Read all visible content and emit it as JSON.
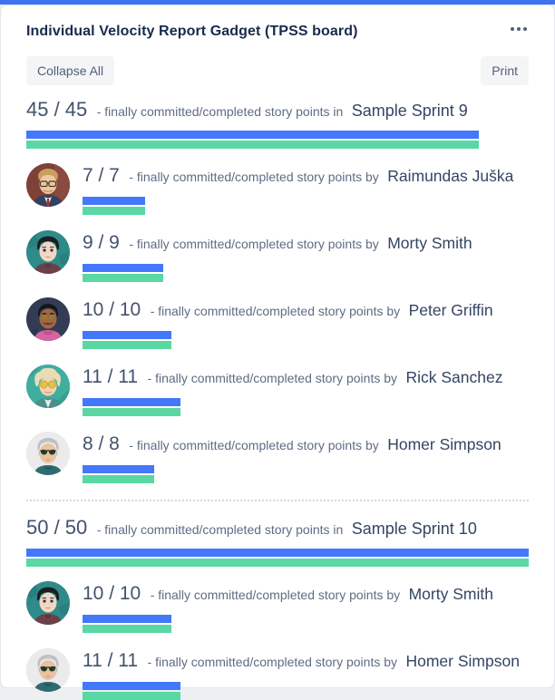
{
  "header": {
    "title": "Individual Velocity Report Gadget (TPSS board)",
    "menu_icon": "more-horizontal"
  },
  "toolbar": {
    "collapse_all_label": "Collapse All",
    "print_label": "Print"
  },
  "colors": {
    "accent_strip": "#3D72F1",
    "bar_committed": "#4478FB",
    "bar_completed": "#59D8A4"
  },
  "chart_data": {
    "type": "bar",
    "title": "Individual Velocity Report Gadget (TPSS board)",
    "max_points": 50,
    "legend": [
      "committed story points",
      "completed story points"
    ],
    "sections": [
      {
        "value_label": "45 / 45",
        "committed": 45,
        "completed": 45,
        "separator_text": "- finally committed/completed story points in",
        "name": "Sample Sprint 9",
        "rows": [
          {
            "value_label": "7 / 7",
            "committed": 7,
            "completed": 7,
            "separator_text": "- finally committed/completed story points by",
            "name": "Raimundas Juška",
            "avatar": "raimundas"
          },
          {
            "value_label": "9 / 9",
            "committed": 9,
            "completed": 9,
            "separator_text": "- finally committed/completed story points by",
            "name": "Morty Smith",
            "avatar": "morty"
          },
          {
            "value_label": "10 / 10",
            "committed": 10,
            "completed": 10,
            "separator_text": "- finally committed/completed story points by",
            "name": "Peter Griffin",
            "avatar": "peter"
          },
          {
            "value_label": "11 / 11",
            "committed": 11,
            "completed": 11,
            "separator_text": "- finally committed/completed story points by",
            "name": "Rick Sanchez",
            "avatar": "rick"
          },
          {
            "value_label": "8 / 8",
            "committed": 8,
            "completed": 8,
            "separator_text": "- finally committed/completed story points by",
            "name": "Homer Simpson",
            "avatar": "homer"
          }
        ]
      },
      {
        "value_label": "50 / 50",
        "committed": 50,
        "completed": 50,
        "separator_text": "- finally committed/completed story points in",
        "name": "Sample Sprint 10",
        "rows": [
          {
            "value_label": "10 / 10",
            "committed": 10,
            "completed": 10,
            "separator_text": "- finally committed/completed story points by",
            "name": "Morty Smith",
            "avatar": "morty"
          },
          {
            "value_label": "11 / 11",
            "committed": 11,
            "completed": 11,
            "separator_text": "- finally committed/completed story points by",
            "name": "Homer Simpson",
            "avatar": "homer"
          }
        ]
      }
    ]
  }
}
